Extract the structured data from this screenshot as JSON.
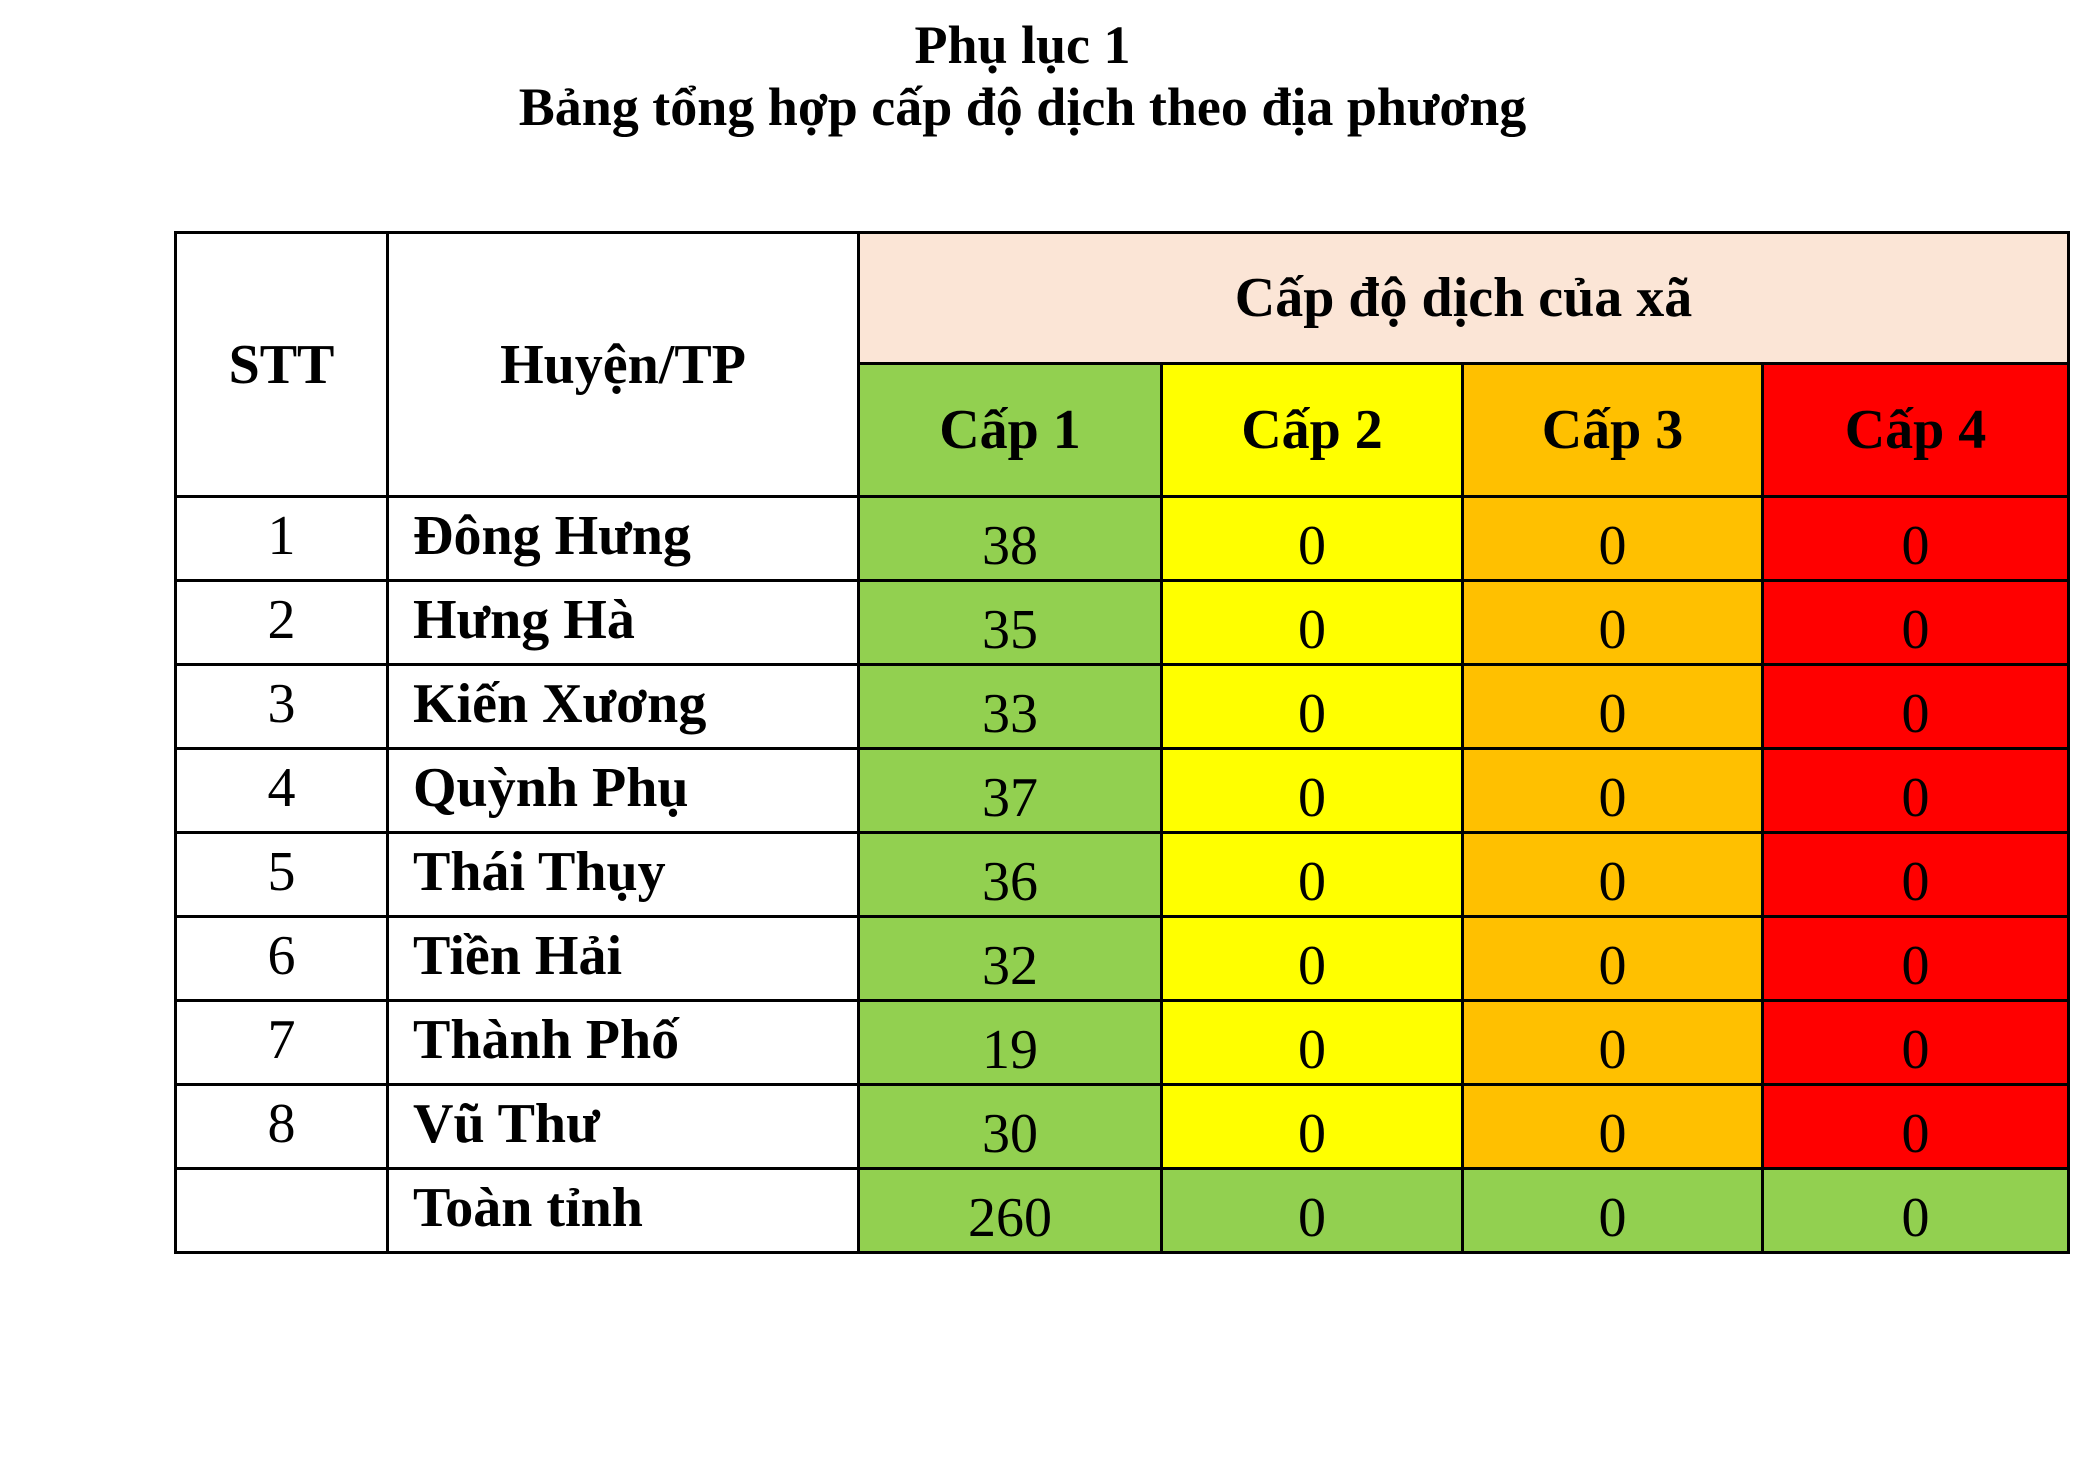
{
  "title": {
    "line1": "Phụ lục 1",
    "line2": "Bảng tổng hợp cấp độ dịch theo địa phương"
  },
  "table": {
    "headers": {
      "stt": "STT",
      "district": "Huyện/TP",
      "group": "Cấp độ dịch của xã",
      "levels": [
        "Cấp 1",
        "Cấp 2",
        "Cấp 3",
        "Cấp 4"
      ]
    },
    "rows": [
      {
        "stt": "1",
        "district": "Đông Hưng",
        "values": [
          "38",
          "0",
          "0",
          "0"
        ],
        "total": false
      },
      {
        "stt": "2",
        "district": "Hưng Hà",
        "values": [
          "35",
          "0",
          "0",
          "0"
        ],
        "total": false
      },
      {
        "stt": "3",
        "district": "Kiến Xương",
        "values": [
          "33",
          "0",
          "0",
          "0"
        ],
        "total": false
      },
      {
        "stt": "4",
        "district": "Quỳnh Phụ",
        "values": [
          "37",
          "0",
          "0",
          "0"
        ],
        "total": false
      },
      {
        "stt": "5",
        "district": "Thái Thụy",
        "values": [
          "36",
          "0",
          "0",
          "0"
        ],
        "total": false
      },
      {
        "stt": "6",
        "district": "Tiền Hải",
        "values": [
          "32",
          "0",
          "0",
          "0"
        ],
        "total": false
      },
      {
        "stt": "7",
        "district": "Thành Phố",
        "values": [
          "19",
          "0",
          "0",
          "0"
        ],
        "total": false
      },
      {
        "stt": "8",
        "district": "Vũ Thư",
        "values": [
          "30",
          "0",
          "0",
          "0"
        ],
        "total": false
      },
      {
        "stt": "",
        "district": "Toàn tỉnh",
        "values": [
          "260",
          "0",
          "0",
          "0"
        ],
        "total": true
      }
    ]
  },
  "colors": {
    "level1": "#92D050",
    "level2": "#FFFF00",
    "level3": "#FFC000",
    "level4": "#FF0000",
    "group_header": "#FBE5D6",
    "total_row_fill": "#92D050",
    "border": "#000000"
  }
}
